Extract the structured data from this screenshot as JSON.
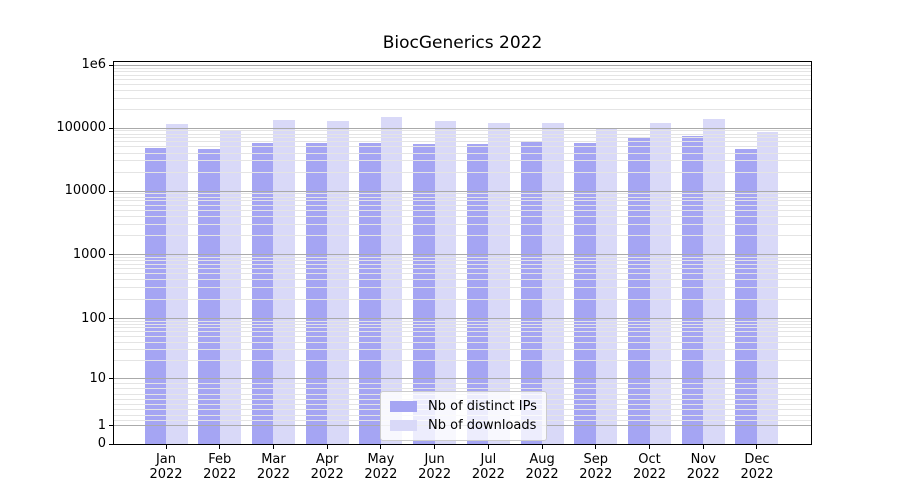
{
  "colors": {
    "distinct_ips": "#a5a5f3",
    "downloads": "#d9d9f8",
    "grid_major": "#aaaaaa",
    "grid_minor": "#e4e4e4",
    "spine": "#000000",
    "background": "#ffffff",
    "text": "#000000"
  },
  "x_axis": {
    "months": [
      "Jan",
      "Feb",
      "Mar",
      "Apr",
      "May",
      "Jun",
      "Jul",
      "Aug",
      "Sep",
      "Oct",
      "Nov",
      "Dec"
    ],
    "year": "2022"
  },
  "y_axis": {
    "tick_labels": [
      "1e6",
      "100000",
      "10000",
      "1000",
      "100",
      "10",
      "1",
      "0"
    ]
  },
  "chart_data": {
    "type": "bar",
    "title": "BiocGenerics 2022",
    "categories": [
      "Jan 2022",
      "Feb 2022",
      "Mar 2022",
      "Apr 2022",
      "May 2022",
      "Jun 2022",
      "Jul 2022",
      "Aug 2022",
      "Sep 2022",
      "Oct 2022",
      "Nov 2022",
      "Dec 2022"
    ],
    "series": [
      {
        "name": "Nb of distinct IPs",
        "color": "#a5a5f3",
        "values": [
          48600,
          46300,
          58500,
          58000,
          58800,
          56500,
          55300,
          61600,
          57500,
          70600,
          74500,
          45800
        ]
      },
      {
        "name": "Nb of downloads",
        "color": "#d9d9f8",
        "values": [
          114500,
          89600,
          136500,
          128000,
          147500,
          127900,
          120200,
          118000,
          97500,
          120000,
          138500,
          86900
        ]
      }
    ],
    "yscale": "symlog",
    "ylim": [
      0,
      1150000
    ],
    "y_ticks": [
      {
        "label": "1e6",
        "value": 1000000
      },
      {
        "label": "100000",
        "value": 100000
      },
      {
        "label": "10000",
        "value": 10000
      },
      {
        "label": "1000",
        "value": 1000
      },
      {
        "label": "100",
        "value": 100
      },
      {
        "label": "10",
        "value": 10
      },
      {
        "label": "1",
        "value": 1
      },
      {
        "label": "0",
        "value": 0
      }
    ],
    "grid": "horizontal major and minor, drawn above bars",
    "legend_position": "lower center inside plot",
    "bar_group_width": 0.8
  }
}
